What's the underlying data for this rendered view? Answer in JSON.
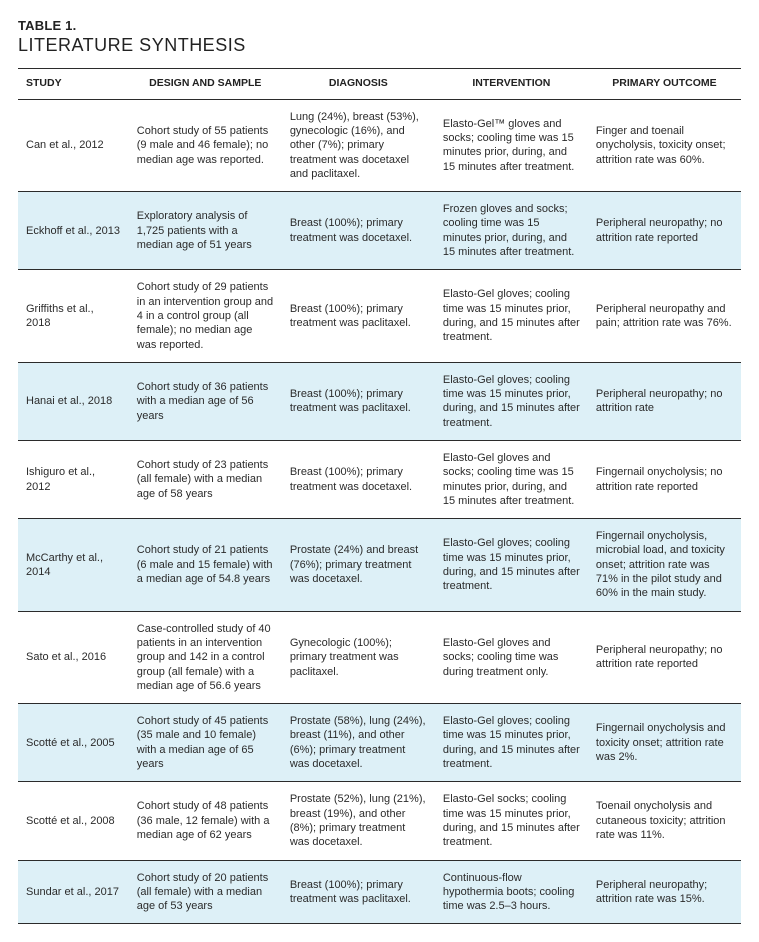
{
  "table_label": "TABLE 1.",
  "table_title": "LITERATURE SYNTHESIS",
  "colors": {
    "alt_row_bg": "#ddf0f7",
    "border": "#2b2b2b",
    "text": "#2b2b2b",
    "background": "#ffffff"
  },
  "columns": [
    {
      "label": "STUDY",
      "align": "left"
    },
    {
      "label": "DESIGN AND SAMPLE",
      "align": "center"
    },
    {
      "label": "DIAGNOSIS",
      "align": "center"
    },
    {
      "label": "INTERVENTION",
      "align": "center"
    },
    {
      "label": "PRIMARY OUTCOME",
      "align": "center"
    }
  ],
  "rows": [
    {
      "study": "Can et al., 2012",
      "design": "Cohort study of 55 patients (9 male and 46 female); no median age was reported.",
      "diagnosis": "Lung (24%), breast (53%), gynecologic (16%), and other (7%); primary treatment was docetaxel and paclitaxel.",
      "intervention": "Elasto-Gel™ gloves and socks; cooling time was 15 minutes prior, during, and 15 minutes after treatment.",
      "outcome": "Finger and toenail onycholysis, toxicity onset; attrition rate was 60%."
    },
    {
      "study": "Eckhoff et al., 2013",
      "design": "Exploratory analysis of 1,725 patients with a median age of 51 years",
      "diagnosis": "Breast (100%); primary treatment was docetaxel.",
      "intervention": "Frozen gloves and socks; cooling time was 15 minutes prior, during, and 15 minutes after treatment.",
      "outcome": "Peripheral neuropathy; no attrition rate reported"
    },
    {
      "study": "Griffiths et al., 2018",
      "design": "Cohort study of 29 patients in an intervention group and 4 in a control group (all female); no median age was reported.",
      "diagnosis": "Breast (100%); primary treatment was paclitaxel.",
      "intervention": "Elasto-Gel gloves; cooling time was 15 minutes prior, during, and 15 minutes after treatment.",
      "outcome": "Peripheral neuropathy and pain; attrition rate was 76%."
    },
    {
      "study": "Hanai et al., 2018",
      "design": "Cohort study of 36 patients with a median age of 56 years",
      "diagnosis": "Breast (100%); primary treatment was paclitaxel.",
      "intervention": "Elasto-Gel gloves; cooling time was 15 minutes prior, during, and 15 minutes after treatment.",
      "outcome": "Peripheral neuropathy; no attrition rate"
    },
    {
      "study": "Ishiguro et al., 2012",
      "design": "Cohort study of 23 patients (all female) with a median age of 58 years",
      "diagnosis": "Breast (100%); primary treatment was docetaxel.",
      "intervention": "Elasto-Gel gloves and socks; cooling time was 15 minutes prior, during, and 15 minutes after treatment.",
      "outcome": "Fingernail onycholysis; no attrition rate reported"
    },
    {
      "study": "McCarthy et al., 2014",
      "design": "Cohort study of 21 patients (6 male and 15 female) with a median age of 54.8 years",
      "diagnosis": "Prostate (24%) and breast (76%); primary treatment was docetaxel.",
      "intervention": "Elasto-Gel gloves; cooling time was 15 minutes prior, during, and 15 minutes after treatment.",
      "outcome": "Fingernail onycholysis, microbial load, and toxicity onset; attrition rate was 71% in the pilot study and 60% in the main study."
    },
    {
      "study": "Sato et al., 2016",
      "design": "Case-controlled study of 40 patients in an intervention group and 142 in a control group (all female) with a median age of 56.6 years",
      "diagnosis": "Gynecologic (100%); primary treatment was paclitaxel.",
      "intervention": "Elasto-Gel gloves and socks; cooling time was during treatment only.",
      "outcome": "Peripheral neuropathy; no attrition rate reported"
    },
    {
      "study": "Scotté et al., 2005",
      "design": "Cohort study of 45 patients (35 male and 10 female) with a median age of 65 years",
      "diagnosis": "Prostate (58%), lung (24%), breast (11%), and other (6%); primary treatment was docetaxel.",
      "intervention": "Elasto-Gel gloves; cooling time was 15 minutes prior, during, and 15 minutes after treatment.",
      "outcome": "Fingernail onycholysis and toxicity onset; attrition rate was 2%."
    },
    {
      "study": "Scotté et al., 2008",
      "design": "Cohort study of 48 patients (36 male, 12 female) with a median age of 62 years",
      "diagnosis": "Prostate (52%), lung (21%), breast (19%), and other (8%); primary treatment was docetaxel.",
      "intervention": "Elasto-Gel socks; cooling time was 15 minutes prior, during, and 15 minutes after treatment.",
      "outcome": "Toenail onycholysis and cutaneous toxicity; attrition rate was 11%."
    },
    {
      "study": "Sundar et al., 2017",
      "design": "Cohort study of 20 patients (all female) with a median age of 53 years",
      "diagnosis": "Breast (100%); primary treatment was paclitaxel.",
      "intervention": "Continuous-flow hypothermia boots; cooling time was 2.5–3 hours.",
      "outcome": "Peripheral neuropathy; attrition rate was 15%."
    }
  ]
}
